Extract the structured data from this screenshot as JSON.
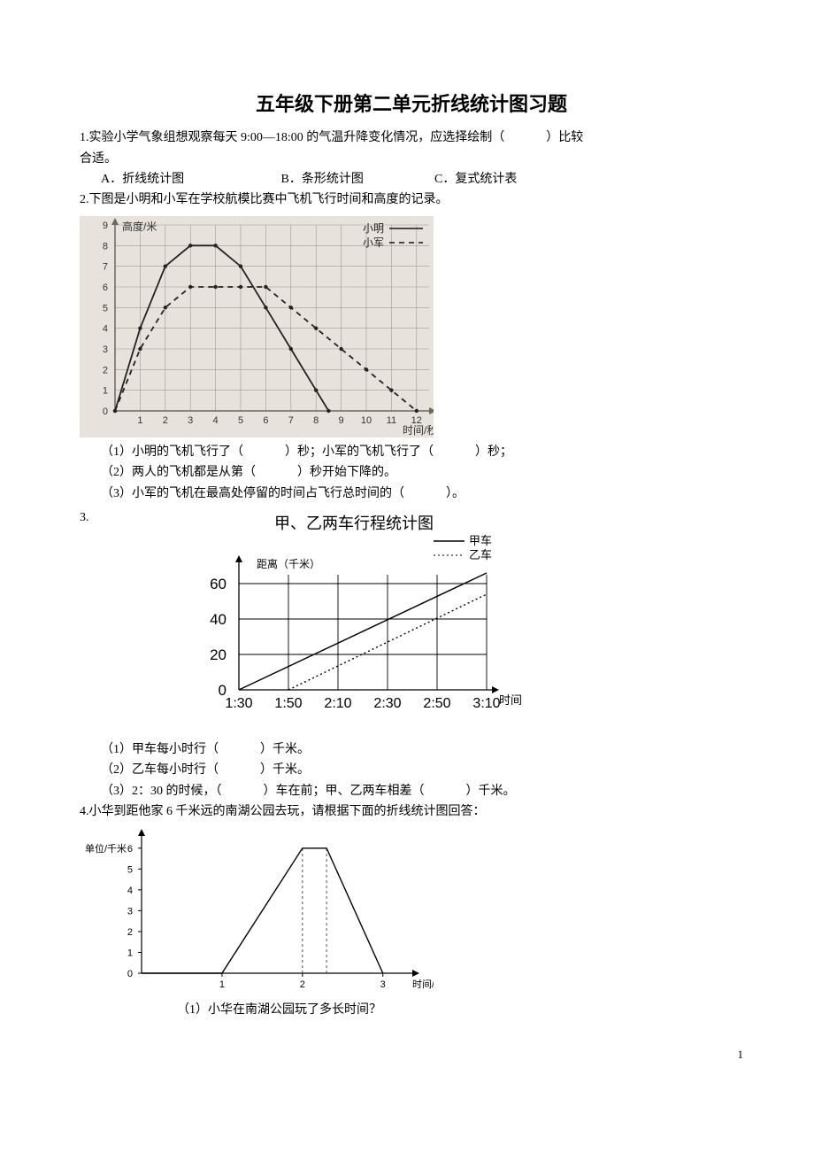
{
  "title": "五年级下册第二单元折线统计图习题",
  "q1": {
    "text_a": "1.实验小学气象组想观察每天 9:00—18:00 的气温升降变化情况，应选择绘制（",
    "text_b": "）比较",
    "text_c": "合适。",
    "opts": {
      "a": "A．折线统计图",
      "b": "B．条形统计图",
      "c": "C．复式统计表"
    }
  },
  "q2": {
    "stem": "2.下图是小明和小军在学校航模比赛中飞机飞行时间和高度的记录。",
    "chart": {
      "ylabel": "高度/米",
      "xlabel": "时间/秒",
      "legend": {
        "ming": "小明",
        "jun": "小军"
      },
      "xticks": [
        "1",
        "2",
        "3",
        "4",
        "5",
        "6",
        "7",
        "8",
        "9",
        "10",
        "11",
        "12"
      ],
      "yticks": [
        "0",
        "1",
        "2",
        "3",
        "4",
        "5",
        "6",
        "7",
        "8",
        "9"
      ],
      "xlim": [
        0,
        12.5
      ],
      "ylim": [
        0,
        9
      ],
      "bg": "#e7e3dc",
      "grid": "#9e9a92",
      "frame": "#6b665e",
      "ming_color": "#333",
      "jun_color": "#333",
      "ming": [
        [
          0,
          0
        ],
        [
          1,
          4
        ],
        [
          2,
          7
        ],
        [
          3,
          8
        ],
        [
          4,
          8
        ],
        [
          5,
          7
        ],
        [
          6,
          5
        ],
        [
          7,
          3
        ],
        [
          8,
          1
        ],
        [
          8.5,
          0
        ]
      ],
      "jun": [
        [
          0,
          0
        ],
        [
          1,
          3
        ],
        [
          2,
          5
        ],
        [
          3,
          6
        ],
        [
          4,
          6
        ],
        [
          5,
          6
        ],
        [
          6,
          6
        ],
        [
          7,
          5
        ],
        [
          8,
          4
        ],
        [
          9,
          3
        ],
        [
          10,
          2
        ],
        [
          11,
          1
        ],
        [
          12,
          0
        ]
      ]
    },
    "sub1_a": "（1）小明的飞机飞行了（",
    "sub1_b": "）秒；小军的飞机飞行了（",
    "sub1_c": "）秒；",
    "sub2_a": "（2）两人的飞机都是从第（",
    "sub2_b": "）秒开始下降的。",
    "sub3_a": "（3）小军的飞机在最高处停留的时间占飞行总时间的（",
    "sub3_b": "）。"
  },
  "q3": {
    "num": "3.",
    "chart": {
      "title": "甲、乙两车行程统计图",
      "legend": {
        "jia": "甲车",
        "yi": "乙车"
      },
      "ylabel": "距离（千米）",
      "xlabel": "时间",
      "yticks": [
        "0",
        "20",
        "40",
        "60"
      ],
      "xticks": [
        "1:30",
        "1:50",
        "2:10",
        "2:30",
        "2:50",
        "3:10"
      ],
      "ylim": [
        0,
        70
      ],
      "jia_color": "#000",
      "yi_color": "#000",
      "grid": "#000",
      "jia": [
        [
          0,
          0
        ],
        [
          5,
          66
        ]
      ],
      "yi": [
        [
          1,
          0
        ],
        [
          5,
          54
        ]
      ]
    },
    "sub1_a": "（1）甲车每小时行（",
    "sub1_b": "）千米。",
    "sub2_a": "（2）乙车每小时行（",
    "sub2_b": "）千米。",
    "sub3_a": "（3）2：30 的时候，（",
    "sub3_b": "）车在前；甲、乙两车相差（",
    "sub3_c": "）千米。"
  },
  "q4": {
    "stem": "4.小华到距他家 6 千米远的南湖公园去玩，请根据下面的折线统计图回答：",
    "chart": {
      "ylabel": "单位/千米",
      "xlabel": "时间/时",
      "yticks": [
        "0",
        "1",
        "2",
        "3",
        "4",
        "5",
        "6"
      ],
      "xticks": [
        "1",
        "2",
        "3"
      ],
      "ylim": [
        0,
        6.5
      ],
      "xlim": [
        0,
        3.3
      ],
      "grid": "#555",
      "line_color": "#000",
      "line": [
        [
          0,
          0
        ],
        [
          1,
          0
        ],
        [
          2,
          6
        ],
        [
          2.3,
          6
        ],
        [
          3,
          0
        ]
      ]
    },
    "sub1": "（1）小华在南湖公园玩了多长时间？"
  },
  "page_num": "1"
}
